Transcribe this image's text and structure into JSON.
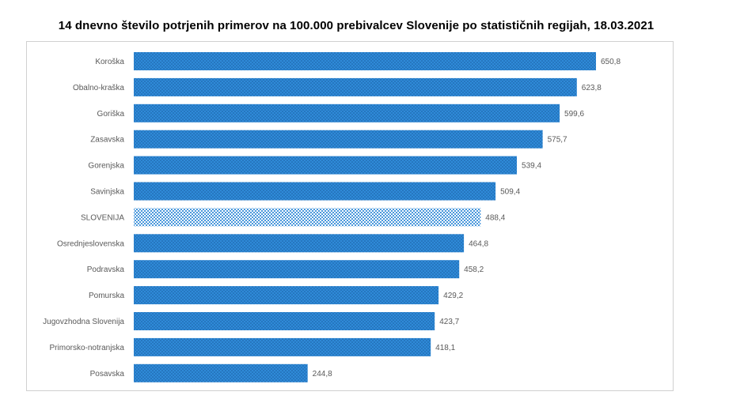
{
  "chart_data": {
    "type": "bar",
    "orientation": "horizontal",
    "title": "14 dnevno število potrjenih primerov na 100.000  prebivalcev Slovenije po statističnih regijah, 18.03.2021",
    "xlabel": "",
    "ylabel": "",
    "xlim": [
      0,
      700
    ],
    "grid": false,
    "legend": "none",
    "colors": {
      "bar": "#2e86d4",
      "highlight": "#9ecdf0",
      "dots": "#1a5a9a"
    },
    "categories": [
      "Koroška",
      "Obalno-kraška",
      "Goriška",
      "Zasavska",
      "Gorenjska",
      "Savinjska",
      "SLOVENIJA",
      "Osrednjeslovenska",
      "Podravska",
      "Pomurska",
      "Jugovzhodna Slovenija",
      "Primorsko-notranjska",
      "Posavska"
    ],
    "values": [
      650.8,
      623.8,
      599.6,
      575.7,
      539.4,
      509.4,
      488.4,
      464.8,
      458.2,
      429.2,
      423.7,
      418.1,
      244.8
    ],
    "value_labels": [
      "650,8",
      "623,8",
      "599,6",
      "575,7",
      "539,4",
      "509,4",
      "488,4",
      "464,8",
      "458,2",
      "429,2",
      "423,7",
      "418,1",
      "244,8"
    ],
    "highlight": "SLOVENIJA"
  }
}
